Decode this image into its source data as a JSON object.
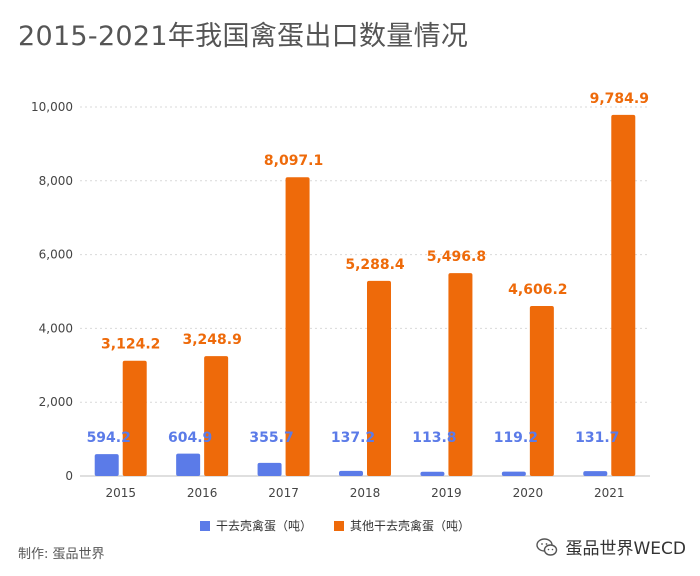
{
  "title": "2015-2021年我国禽蛋出口数量情况",
  "credit": "制作: 蛋品世界",
  "watermark": "蛋品世界WECD",
  "chart_data": {
    "type": "bar",
    "categories": [
      "2015",
      "2016",
      "2017",
      "2018",
      "2019",
      "2020",
      "2021"
    ],
    "series": [
      {
        "name": "干去壳禽蛋（吨）",
        "color": "#5b7be8",
        "values": [
          594.2,
          604.9,
          355.7,
          137.2,
          113.8,
          119.2,
          131.7
        ],
        "labels": [
          "594.2",
          "604.9",
          "355.7",
          "137.2",
          "113.8",
          "119.2",
          "131.7"
        ]
      },
      {
        "name": "其他干去壳禽蛋（吨）",
        "color": "#ee6a0a",
        "values": [
          3124.2,
          3248.9,
          8097.1,
          5288.4,
          5496.8,
          4606.2,
          9784.9
        ],
        "labels": [
          "3,124.2",
          "3,248.9",
          "8,097.1",
          "5,288.4",
          "5,496.8",
          "4,606.2",
          "9,784.9"
        ]
      }
    ],
    "ylim": [
      0,
      10000
    ],
    "yticks": [
      0,
      2000,
      4000,
      6000,
      8000,
      10000
    ],
    "ytick_labels": [
      "0",
      "2,000",
      "4,000",
      "6,000",
      "8,000",
      "10,000"
    ],
    "grid": true,
    "legend_position": "bottom-center"
  }
}
